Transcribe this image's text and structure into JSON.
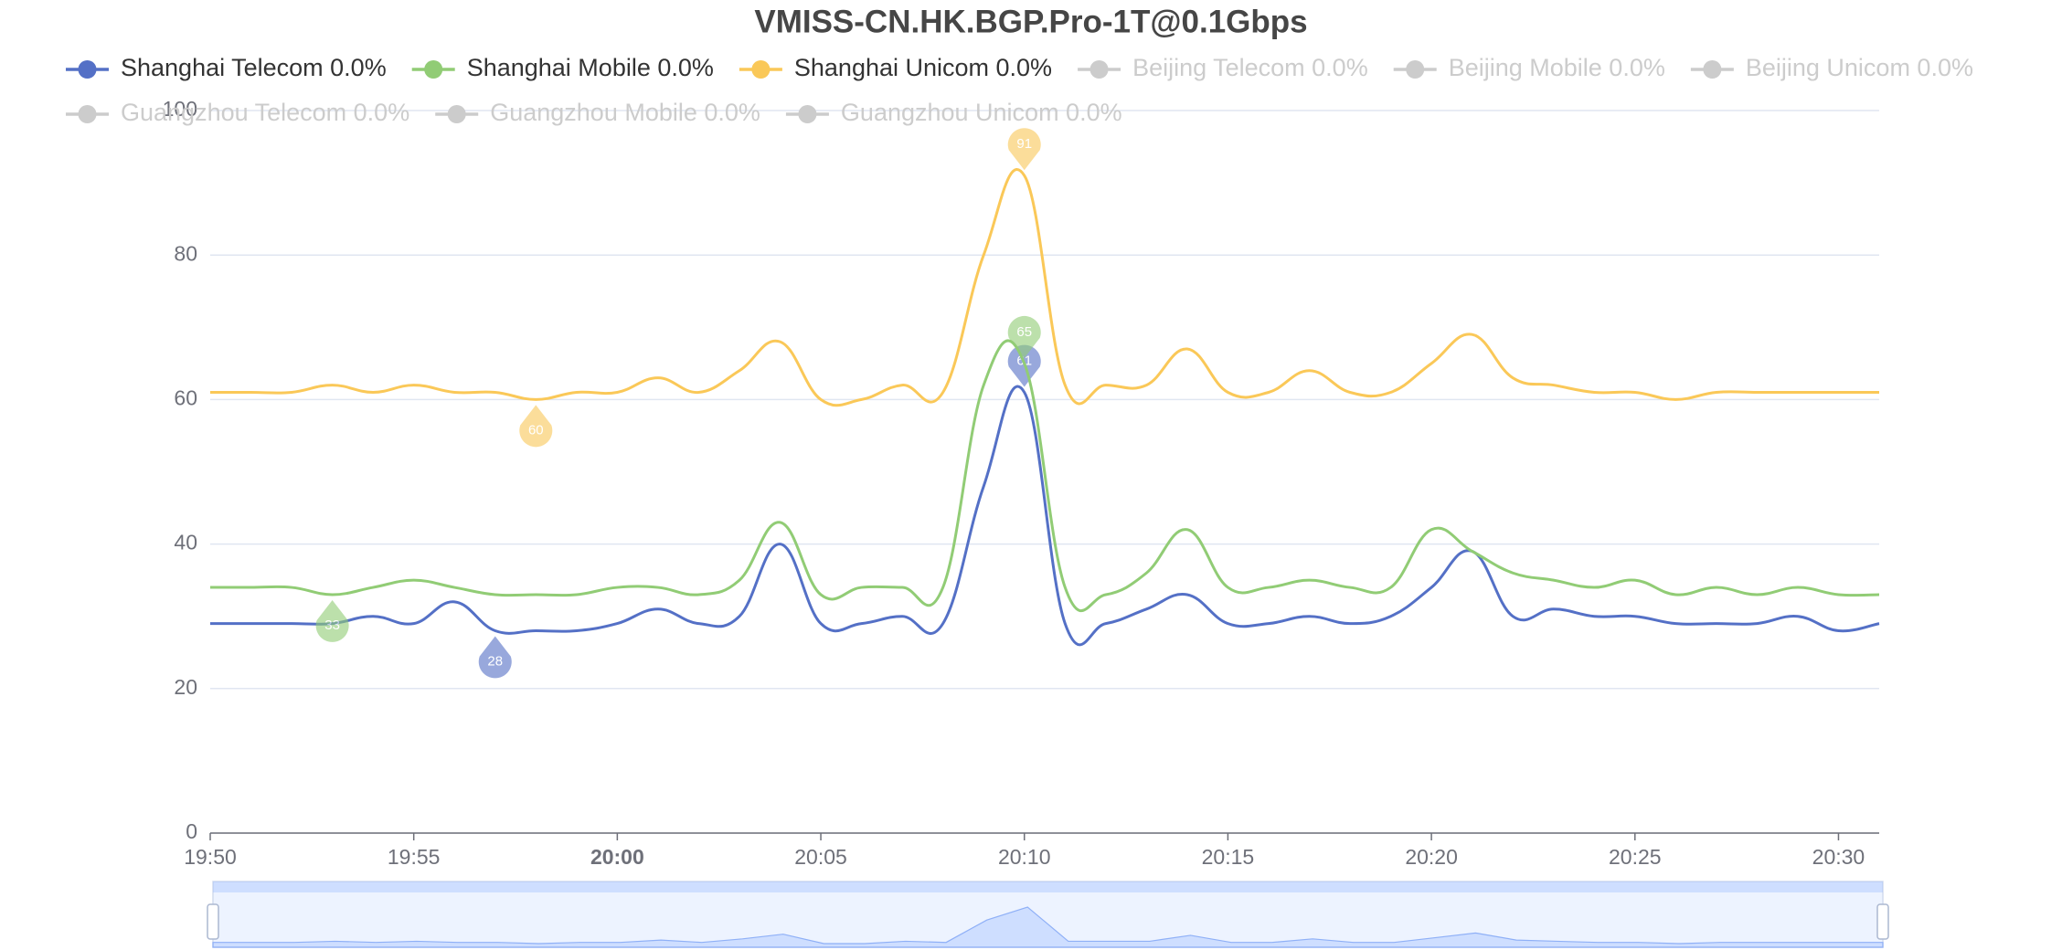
{
  "chart_data": {
    "type": "line",
    "title": "VMISS-CN.HK.BGP.Pro-1T@0.1Gbps",
    "x": [
      "19:50",
      "19:51",
      "19:52",
      "19:53",
      "19:54",
      "19:55",
      "19:56",
      "19:57",
      "19:58",
      "19:59",
      "20:00",
      "20:01",
      "20:02",
      "20:03",
      "20:04",
      "20:05",
      "20:06",
      "20:07",
      "20:08",
      "20:09",
      "20:10",
      "20:11",
      "20:12",
      "20:13",
      "20:14",
      "20:15",
      "20:16",
      "20:17",
      "20:18",
      "20:19",
      "20:20",
      "20:21",
      "20:22",
      "20:23",
      "20:24",
      "20:25",
      "20:26",
      "20:27",
      "20:28",
      "20:29",
      "20:30",
      "20:31"
    ],
    "xticks": [
      "19:50",
      "19:55",
      "20:00",
      "20:05",
      "20:10",
      "20:15",
      "20:20",
      "20:25",
      "20:30"
    ],
    "ylim": [
      0,
      100
    ],
    "yticks": [
      0,
      20,
      40,
      60,
      80,
      100
    ],
    "grid": true,
    "smooth": true,
    "series": [
      {
        "name": "Shanghai Telecom 0.0%",
        "color": "#5470c6",
        "visible": true,
        "values": [
          29,
          29,
          29,
          29,
          30,
          29,
          32,
          28,
          28,
          28,
          29,
          31,
          29,
          30,
          40,
          29,
          29,
          30,
          29,
          48,
          61,
          29,
          29,
          31,
          33,
          29,
          29,
          30,
          29,
          30,
          34,
          39,
          30,
          31,
          30,
          30,
          29,
          29,
          29,
          30,
          28,
          29
        ],
        "markpoints": [
          {
            "x": "20:10",
            "value": 61,
            "kind": "max"
          },
          {
            "x": "19:57",
            "value": 28,
            "kind": "min"
          }
        ]
      },
      {
        "name": "Shanghai Mobile 0.0%",
        "color": "#91cc75",
        "visible": true,
        "values": [
          34,
          34,
          34,
          33,
          34,
          35,
          34,
          33,
          33,
          33,
          34,
          34,
          33,
          35,
          43,
          33,
          34,
          34,
          34,
          62,
          65,
          34,
          33,
          36,
          42,
          34,
          34,
          35,
          34,
          34,
          42,
          39,
          36,
          35,
          34,
          35,
          33,
          34,
          33,
          34,
          33,
          33
        ],
        "markpoints": [
          {
            "x": "20:10",
            "value": 65,
            "kind": "max"
          },
          {
            "x": "19:53",
            "value": 33,
            "kind": "min"
          }
        ]
      },
      {
        "name": "Shanghai Unicom 0.0%",
        "color": "#fac858",
        "visible": true,
        "values": [
          61,
          61,
          61,
          62,
          61,
          62,
          61,
          61,
          60,
          61,
          61,
          63,
          61,
          64,
          68,
          60,
          60,
          62,
          61,
          80,
          91,
          62,
          62,
          62,
          67,
          61,
          61,
          64,
          61,
          61,
          65,
          69,
          63,
          62,
          61,
          61,
          60,
          61,
          61,
          61,
          61,
          61
        ],
        "markpoints": [
          {
            "x": "20:10",
            "value": 91,
            "kind": "max"
          },
          {
            "x": "19:58",
            "value": 60,
            "kind": "min"
          }
        ]
      },
      {
        "name": "Beijing Telecom 0.0%",
        "color": "#cccccc",
        "visible": false
      },
      {
        "name": "Beijing Mobile 0.0%",
        "color": "#cccccc",
        "visible": false
      },
      {
        "name": "Beijing Unicom 0.0%",
        "color": "#cccccc",
        "visible": false
      },
      {
        "name": "Guangzhou Telecom 0.0%",
        "color": "#cccccc",
        "visible": false
      },
      {
        "name": "Guangzhou Mobile 0.0%",
        "color": "#cccccc",
        "visible": false
      },
      {
        "name": "Guangzhou Unicom 0.0%",
        "color": "#cccccc",
        "visible": false
      }
    ]
  }
}
